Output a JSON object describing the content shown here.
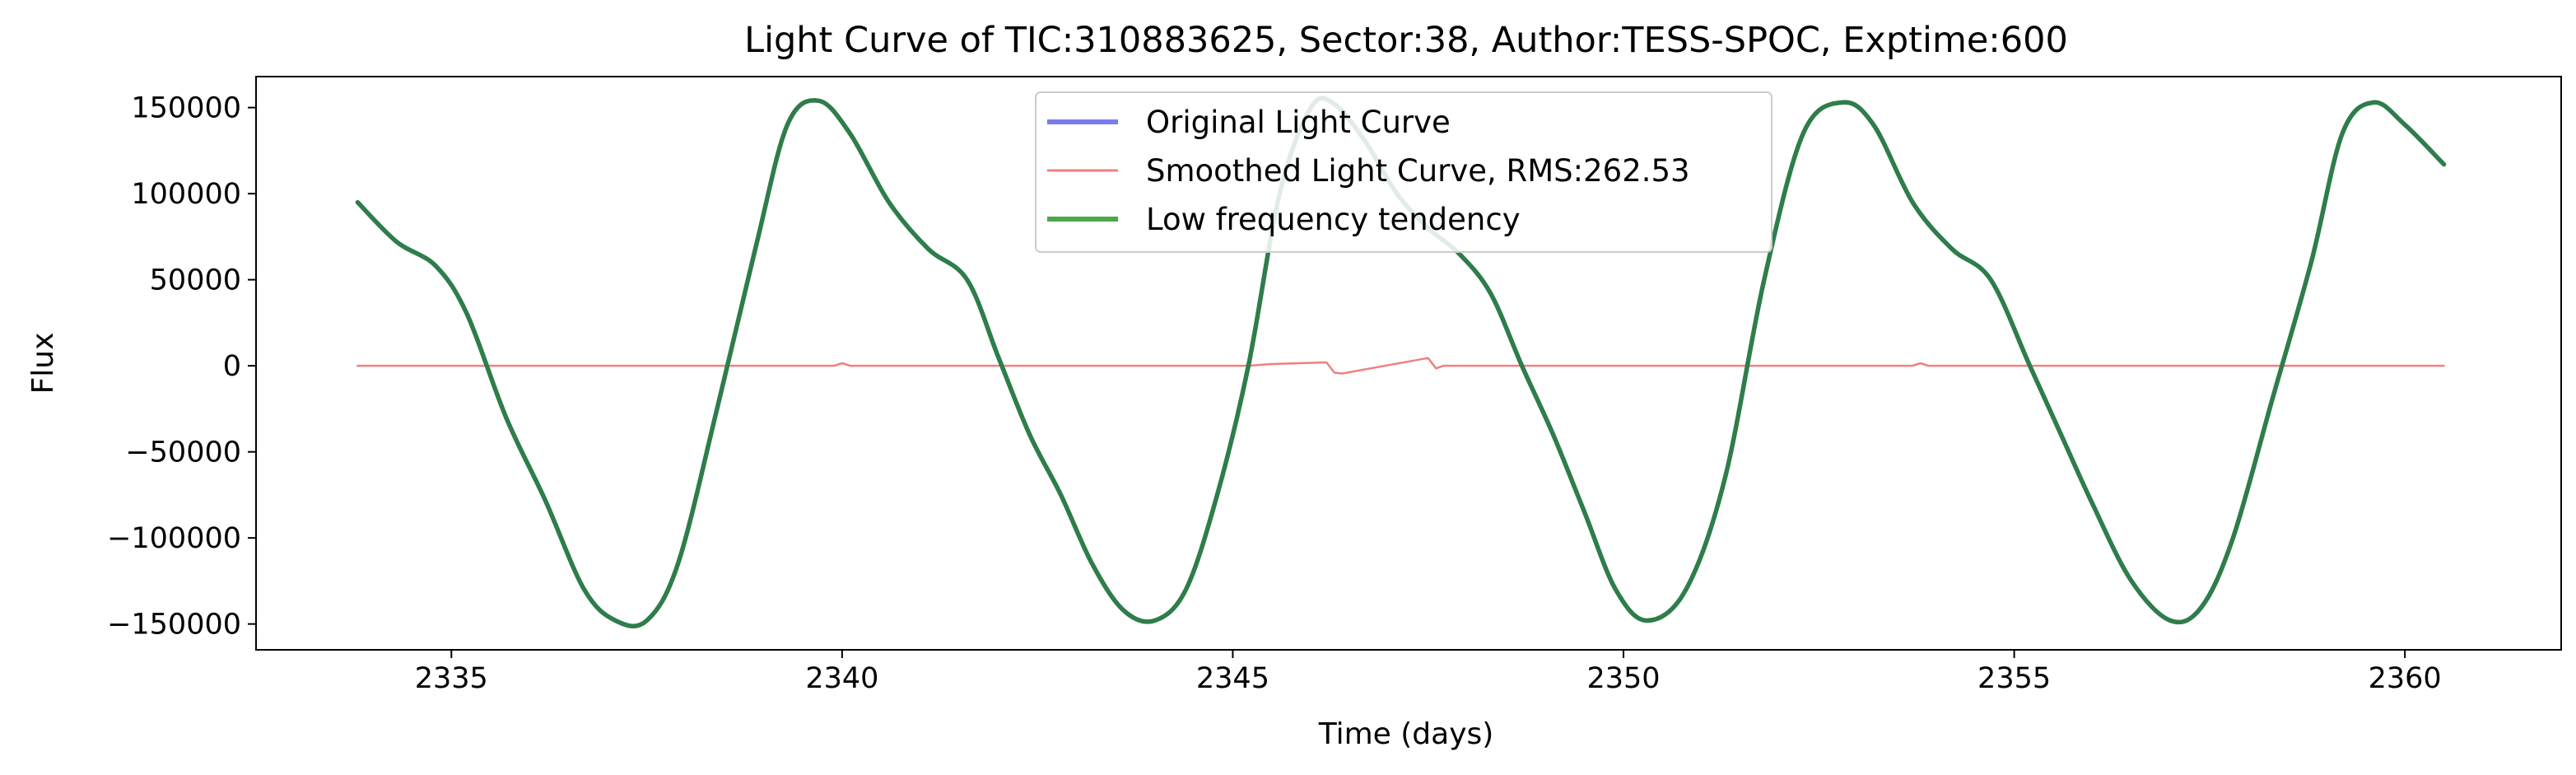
{
  "chart_data": {
    "type": "line",
    "title": "Light Curve of TIC:310883625, Sector:38, Author:TESS-SPOC, Exptime:600",
    "xlabel": "Time (days)",
    "ylabel": "Flux",
    "xlim": [
      2332.5,
      2362.0
    ],
    "ylim": [
      -165000,
      168000
    ],
    "xticks": [
      2335,
      2340,
      2345,
      2350,
      2355,
      2360
    ],
    "yticks": [
      -150000,
      -100000,
      -50000,
      0,
      50000,
      100000,
      150000
    ],
    "xtick_labels": [
      "2335",
      "2340",
      "2345",
      "2350",
      "2355",
      "2360"
    ],
    "ytick_labels": [
      "−150000",
      "−100000",
      "−50000",
      "0",
      "50000",
      "100000",
      "150000"
    ],
    "grid": false,
    "legend": {
      "position": "top-center",
      "entries": [
        "Original Light Curve",
        "Smoothed Light Curve, RMS:262.53",
        "Low frequency tendency"
      ]
    },
    "series": [
      {
        "name": "Original Light Curve",
        "color": "#7b7bf0",
        "note": "hidden beneath the low frequency tendency curve",
        "x": [
          2333.8,
          2334.3,
          2334.8,
          2335.2,
          2335.7,
          2336.2,
          2336.7,
          2337.1,
          2337.5,
          2337.9,
          2338.4,
          2338.9,
          2339.3,
          2339.7,
          2340.1,
          2340.6,
          2341.1,
          2341.6,
          2342.0,
          2342.4,
          2342.8,
          2343.2,
          2343.6,
          2344.0,
          2344.4,
          2344.8,
          2345.2,
          2345.6,
          2346.0,
          2346.3,
          2346.7,
          2347.1,
          2347.5,
          2347.9,
          2348.3,
          2348.7,
          2349.1,
          2349.5,
          2349.9,
          2350.3,
          2350.8,
          2351.3,
          2351.8,
          2352.3,
          2352.8,
          2353.2,
          2353.7,
          2354.2,
          2354.7,
          2355.2,
          2355.6,
          2356.0,
          2356.5,
          2357.0,
          2357.4,
          2357.8,
          2358.3,
          2358.8,
          2359.2,
          2359.6,
          2360.0,
          2360.5
        ],
        "y": [
          95000,
          72000,
          58000,
          30000,
          -30000,
          -78000,
          -130000,
          -148000,
          -148000,
          -115000,
          -25000,
          70000,
          140000,
          154000,
          135000,
          95000,
          68000,
          50000,
          5000,
          -40000,
          -75000,
          -115000,
          -142000,
          -148000,
          -130000,
          -75000,
          0,
          100000,
          150000,
          152000,
          130000,
          100000,
          80000,
          65000,
          42000,
          0,
          -40000,
          -85000,
          -130000,
          -148000,
          -130000,
          -65000,
          50000,
          135000,
          153000,
          140000,
          95000,
          68000,
          50000,
          0,
          -40000,
          -80000,
          -125000,
          -148000,
          -140000,
          -100000,
          -20000,
          60000,
          135000,
          153000,
          140000,
          117000
        ]
      },
      {
        "name": "Smoothed Light Curve, RMS:262.53",
        "color": "#f08080",
        "x": [
          2333.8,
          2339.9,
          2340.0,
          2340.1,
          2345.2,
          2345.5,
          2346.2,
          2346.3,
          2346.4,
          2347.5,
          2347.6,
          2347.7,
          2353.7,
          2353.8,
          2353.9,
          2360.5
        ],
        "y": [
          0,
          0,
          1500,
          0,
          0,
          1000,
          2000,
          -4000,
          -4500,
          4500,
          -1500,
          0,
          0,
          1500,
          0,
          0
        ]
      },
      {
        "name": "Low frequency tendency",
        "color": "#2e7d4a",
        "x": [
          2333.8,
          2334.3,
          2334.8,
          2335.2,
          2335.7,
          2336.2,
          2336.7,
          2337.1,
          2337.5,
          2337.9,
          2338.4,
          2338.9,
          2339.3,
          2339.7,
          2340.1,
          2340.6,
          2341.1,
          2341.6,
          2342.0,
          2342.4,
          2342.8,
          2343.2,
          2343.6,
          2344.0,
          2344.4,
          2344.8,
          2345.2,
          2345.6,
          2346.0,
          2346.3,
          2346.7,
          2347.1,
          2347.5,
          2347.9,
          2348.3,
          2348.7,
          2349.1,
          2349.5,
          2349.9,
          2350.3,
          2350.8,
          2351.3,
          2351.8,
          2352.3,
          2352.8,
          2353.2,
          2353.7,
          2354.2,
          2354.7,
          2355.2,
          2355.6,
          2356.0,
          2356.5,
          2357.0,
          2357.4,
          2357.8,
          2358.3,
          2358.8,
          2359.2,
          2359.6,
          2360.0,
          2360.5
        ],
        "y": [
          95000,
          72000,
          58000,
          30000,
          -30000,
          -78000,
          -130000,
          -148000,
          -148000,
          -115000,
          -25000,
          70000,
          140000,
          154000,
          135000,
          95000,
          68000,
          50000,
          5000,
          -40000,
          -75000,
          -115000,
          -142000,
          -148000,
          -130000,
          -75000,
          0,
          100000,
          150000,
          152000,
          130000,
          100000,
          80000,
          65000,
          42000,
          0,
          -40000,
          -85000,
          -130000,
          -148000,
          -130000,
          -65000,
          50000,
          135000,
          153000,
          140000,
          95000,
          68000,
          50000,
          0,
          -40000,
          -80000,
          -125000,
          -148000,
          -140000,
          -100000,
          -20000,
          60000,
          135000,
          153000,
          140000,
          117000
        ]
      }
    ]
  }
}
